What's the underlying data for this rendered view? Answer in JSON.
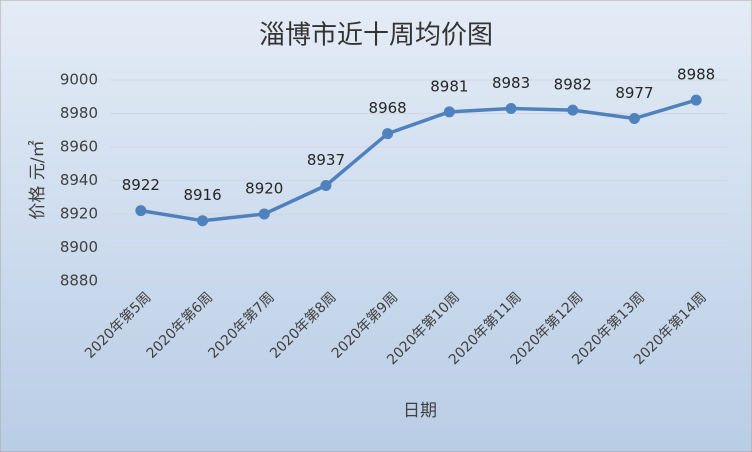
{
  "chart_data": {
    "type": "line",
    "title": "淄博市近十周均价图",
    "x_label": "日期",
    "y_label": "价格 元/㎡",
    "categories": [
      "2020年第5周",
      "2020年第6周",
      "2020年第7周",
      "2020年第8周",
      "2020年第9周",
      "2020年第10周",
      "2020年第11周",
      "2020年第12周",
      "2020年第13周",
      "2020年第14周"
    ],
    "values": [
      8922,
      8916,
      8920,
      8937,
      8968,
      8981,
      8983,
      8982,
      8977,
      8988
    ],
    "color": "#4f81bd",
    "ylim": [
      8880,
      9000
    ],
    "yticks": [
      8880,
      8900,
      8920,
      8940,
      8960,
      8980,
      9000
    ],
    "grid": true
  }
}
